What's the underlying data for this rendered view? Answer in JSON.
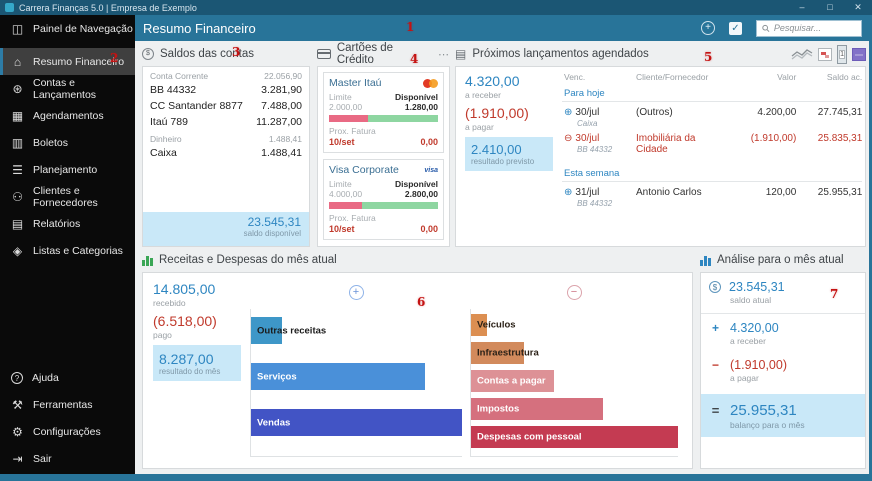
{
  "window": {
    "app_title": "Carrera Finanças 5.0 | Empresa de Exemplo",
    "minimize": "–",
    "maximize": "□",
    "close": "✕"
  },
  "header": {
    "title": "Resumo Financeiro",
    "add_icon": "+",
    "check_icon": "✓",
    "search_placeholder": "Pesquisar..."
  },
  "annotations": [
    "1",
    "2",
    "3",
    "4",
    "5",
    "6",
    "7"
  ],
  "sidebar": {
    "items": [
      {
        "label": "Painel de Navegação",
        "icon": "◫"
      },
      {
        "label": "Resumo Financeiro",
        "icon": "⌂"
      },
      {
        "label": "Contas e Lançamentos",
        "icon": "⊛"
      },
      {
        "label": "Agendamentos",
        "icon": "▦"
      },
      {
        "label": "Boletos",
        "icon": "▥"
      },
      {
        "label": "Planejamento",
        "icon": "☰"
      },
      {
        "label": "Clientes e Fornecedores",
        "icon": "⚇"
      },
      {
        "label": "Relatórios",
        "icon": "▤"
      },
      {
        "label": "Listas e Categorias",
        "icon": "◈"
      }
    ],
    "footer_items": [
      {
        "label": "Ajuda",
        "icon": "?"
      },
      {
        "label": "Ferramentas",
        "icon": "⚒"
      },
      {
        "label": "Configurações",
        "icon": "⚙"
      },
      {
        "label": "Sair",
        "icon": "⇥"
      }
    ]
  },
  "accounts_panel": {
    "title": "Saldos das contas",
    "icon_glyph": "$",
    "groups": [
      {
        "name": "Conta Corrente",
        "total": "22.056,90",
        "rows": [
          {
            "name": "BB 44332",
            "value": "3.281,90"
          },
          {
            "name": "CC Santander 8877",
            "value": "7.488,00"
          },
          {
            "name": "Itaú 789",
            "value": "11.287,00"
          }
        ]
      },
      {
        "name": "Dinheiro",
        "total": "1.488,41",
        "rows": [
          {
            "name": "Caixa",
            "value": "1.488,41"
          }
        ]
      }
    ],
    "footer": {
      "value": "23.545,31",
      "label": "saldo disponível"
    }
  },
  "cards_panel": {
    "title": "Cartões de Crédito",
    "menu_icon": "⋯",
    "cards": [
      {
        "name": "Master Itaú",
        "brand": "mastercard",
        "brand_text": "",
        "limit_label": "Limite",
        "available_label": "Disponível",
        "limit": "2.000,00",
        "available": "1.280,00",
        "used_pct": 36,
        "next_invoice_label": "Prox. Fatura",
        "invoice_date": "10/set",
        "invoice_value": "0,00"
      },
      {
        "name": "Visa Corporate",
        "brand": "visa",
        "brand_text": "visa",
        "limit_label": "Limite",
        "available_label": "Disponível",
        "limit": "4.000,00",
        "available": "2.800,00",
        "used_pct": 30,
        "next_invoice_label": "Prox. Fatura",
        "invoice_date": "10/set",
        "invoice_value": "0,00"
      }
    ]
  },
  "schedule_panel": {
    "title": "Próximos lançamentos agendados",
    "summary": {
      "receivable_value": "4.320,00",
      "receivable_label": "a receber",
      "payable_value": "(1.910,00)",
      "payable_label": "a pagar",
      "forecast_value": "2.410,00",
      "forecast_label": "resultado previsto"
    },
    "table": {
      "headers": [
        "Venc.",
        "Cliente/Fornecedor",
        "Valor",
        "Saldo ac."
      ],
      "groups": [
        {
          "label": "Para hoje",
          "rows": [
            {
              "icon": "⊕",
              "type": "income",
              "date": "30/jul",
              "account": "Caixa",
              "client": "(Outros)",
              "value": "4.200,00",
              "balance": "27.745,31"
            },
            {
              "icon": "⊖",
              "type": "expense",
              "date": "30/jul",
              "account": "BB 44332",
              "client": "Imobiliária da Cidade",
              "value": "(1.910,00)",
              "balance": "25.835,31"
            }
          ]
        },
        {
          "label": "Esta semana",
          "rows": [
            {
              "icon": "⊕",
              "type": "income",
              "date": "31/jul",
              "account": "BB 44332",
              "client": "Antonio Carlos",
              "value": "120,00",
              "balance": "25.955,31"
            }
          ]
        }
      ]
    }
  },
  "chart_panel": {
    "title": "Receitas e Despesas do mês atual",
    "summary": {
      "received_value": "14.805,00",
      "received_label": "recebido",
      "paid_value": "(6.518,00)",
      "paid_label": "pago",
      "result_value": "8.287,00",
      "result_label": "resultado do mês"
    },
    "income_toggle": "+",
    "expense_toggle": "−"
  },
  "analysis_panel": {
    "title": "Análise para o mês atual",
    "rows": [
      {
        "op": "$",
        "value": "23.545,31",
        "label": "saldo atual"
      },
      {
        "op": "+",
        "value": "4.320,00",
        "label": "a receber"
      },
      {
        "op": "−",
        "value": "(1.910,00)",
        "label": "a pagar"
      },
      {
        "op": "=",
        "value": "25.955,31",
        "label": "balanço para o mês"
      }
    ]
  },
  "chart_data": [
    {
      "type": "bar",
      "orientation": "horizontal",
      "group": "receitas",
      "categories": [
        "Outras receitas",
        "Serviços",
        "Vendas"
      ],
      "values": [
        1105,
        6200,
        7500
      ],
      "colors": [
        "#3e97c8",
        "#4a90d9",
        "#4254c5"
      ],
      "total": "14.805,00"
    },
    {
      "type": "bar",
      "orientation": "horizontal",
      "group": "despesas",
      "categories": [
        "Veículos",
        "Infraestrutura",
        "Contas a pagar",
        "Impostos",
        "Despesas com pessoal"
      ],
      "values": [
        218,
        700,
        1100,
        1750,
        2750
      ],
      "colors": [
        "#dc8f52",
        "#d28a5c",
        "#dd9196",
        "#d5707e",
        "#c43b52"
      ],
      "total": "(6.518,00)"
    }
  ]
}
